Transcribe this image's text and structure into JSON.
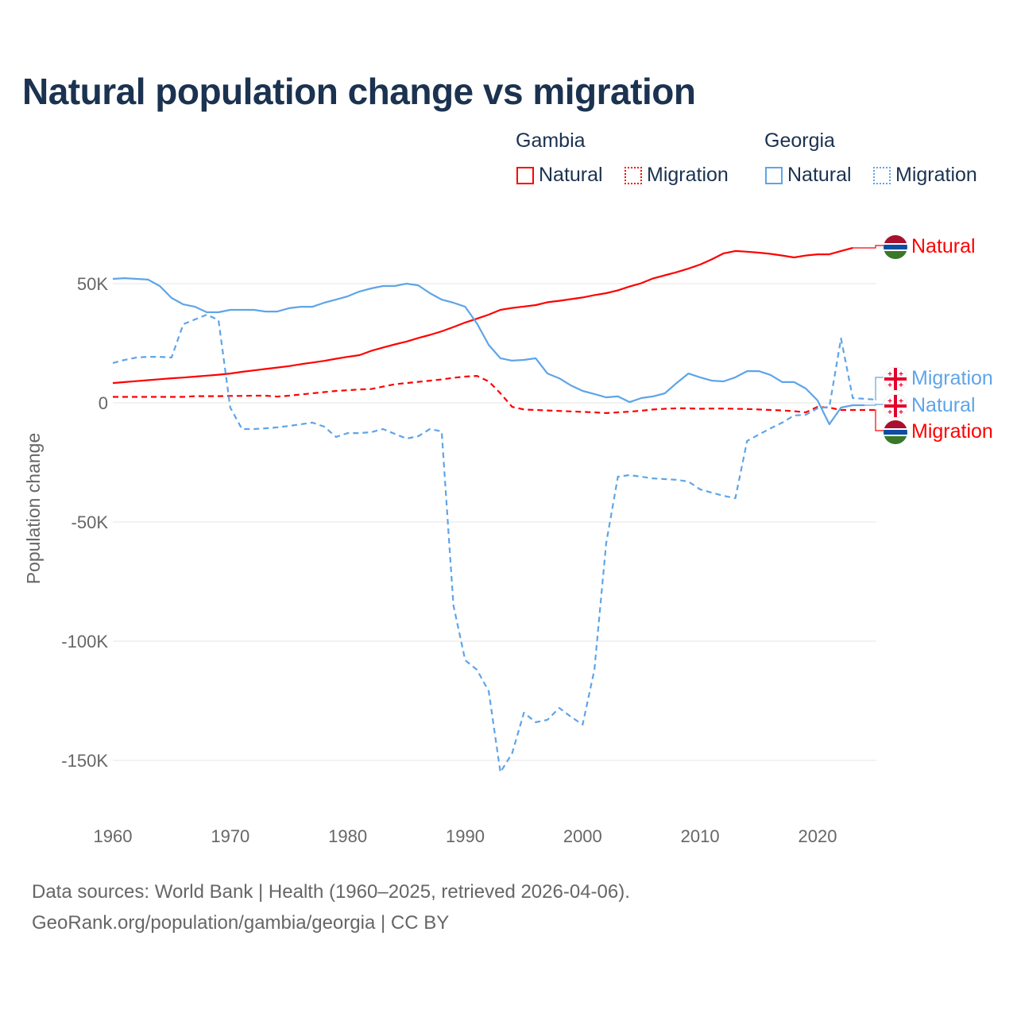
{
  "chart_data": {
    "type": "line",
    "title": "Natural population change vs migration",
    "xlabel": "",
    "ylabel": "Population change",
    "xlim": [
      1960,
      2025
    ],
    "ylim": [
      -165000,
      75000
    ],
    "x_ticks": [
      "1960",
      "1970",
      "1980",
      "1990",
      "2000",
      "2010",
      "2020"
    ],
    "y_ticks": [
      {
        "v": 50000,
        "label": "50K"
      },
      {
        "v": 0,
        "label": "0"
      },
      {
        "v": -50000,
        "label": "-50K"
      },
      {
        "v": -100000,
        "label": "-100K"
      },
      {
        "v": -150000,
        "label": "-150K"
      }
    ],
    "grid": true,
    "legend": {
      "placement": "top-right",
      "groups": [
        {
          "name": "Gambia",
          "items": [
            "Natural",
            "Migration"
          ]
        },
        {
          "name": "Georgia",
          "items": [
            "Natural",
            "Migration"
          ]
        }
      ]
    },
    "series": [
      {
        "name": "Gambia Natural",
        "country": "Gambia",
        "kind": "Natural",
        "color": "#ff0000",
        "dashed": false,
        "start": 1960,
        "end_label": "Natural",
        "values": [
          8.3,
          8.7,
          9.1,
          9.5,
          9.9,
          10.3,
          10.6,
          11,
          11.4,
          11.8,
          12.3,
          13,
          13.6,
          14.2,
          14.8,
          15.4,
          16.2,
          16.9,
          17.6,
          18.5,
          19.3,
          20,
          21.8,
          23.2,
          24.5,
          25.7,
          27.2,
          28.5,
          30,
          31.8,
          33.7,
          35.3,
          37,
          39,
          39.8,
          40.4,
          41,
          42.2,
          42.8,
          43.5,
          44.2,
          45.2,
          46,
          47.2,
          48.8,
          50.2,
          52.2,
          53.5,
          54.8,
          56.3,
          58,
          60.2,
          62.7,
          63.7,
          63.4,
          63,
          62.5,
          61.8,
          61,
          61.8,
          62.3,
          62.3,
          63.7,
          65
        ]
      },
      {
        "name": "Gambia Migration",
        "country": "Gambia",
        "kind": "Migration",
        "color": "#ff0000",
        "dashed": true,
        "start": 1960,
        "end_label": "Migration",
        "values": [
          2.5,
          2.5,
          2.5,
          2.5,
          2.5,
          2.5,
          2.5,
          2.8,
          2.8,
          2.8,
          2.9,
          2.9,
          3,
          3,
          2.6,
          3,
          3.5,
          4,
          4.5,
          5,
          5.3,
          5.6,
          5.8,
          6.8,
          7.8,
          8.3,
          8.8,
          9.3,
          9.8,
          10.5,
          11,
          11.3,
          9,
          4,
          -1.7,
          -2.8,
          -3,
          -3.2,
          -3.4,
          -3.6,
          -3.8,
          -4,
          -4.3,
          -4,
          -3.7,
          -3.3,
          -2.8,
          -2.5,
          -2.3,
          -2.3,
          -2.5,
          -2.4,
          -2.4,
          -2.5,
          -2.6,
          -2.8,
          -3,
          -3.2,
          -3.5,
          -4,
          -1.7,
          -2,
          -3,
          -3,
          -3,
          -3
        ]
      },
      {
        "name": "Georgia Natural",
        "country": "Georgia",
        "kind": "Natural",
        "color": "#5ea5e8",
        "dashed": false,
        "start": 1960,
        "end_label": "Natural",
        "values": [
          52,
          52.3,
          52,
          51.7,
          49,
          44,
          41.3,
          40.3,
          38,
          38,
          39,
          39,
          39,
          38.3,
          38.3,
          39.7,
          40.3,
          40.3,
          42,
          43.3,
          44.7,
          46.7,
          48,
          49,
          49,
          50,
          49.3,
          46,
          43.3,
          42,
          40.3,
          33.3,
          24.3,
          18.7,
          17.7,
          18,
          18.7,
          12.3,
          10.3,
          7.3,
          5,
          3.7,
          2.3,
          2.7,
          0.3,
          2,
          2.7,
          4,
          8.3,
          12.3,
          10.7,
          9.3,
          9,
          10.7,
          13.3,
          13.3,
          11.7,
          8.7,
          8.7,
          6,
          1,
          -9,
          -2,
          -1,
          -1
        ]
      },
      {
        "name": "Georgia Migration",
        "country": "Georgia",
        "kind": "Migration",
        "color": "#5ea5e8",
        "dashed": true,
        "start": 1960,
        "end_label": "Migration",
        "values": [
          16.7,
          18,
          19,
          19.3,
          19.3,
          19,
          33,
          35,
          37,
          34.7,
          -2,
          -11,
          -11,
          -10.7,
          -10.3,
          -9.7,
          -9,
          -8.3,
          -10,
          -14.3,
          -12.7,
          -12.7,
          -12.3,
          -11,
          -13,
          -15,
          -14,
          -11,
          -12,
          -85,
          -108,
          -112,
          -121,
          -155,
          -147,
          -130,
          -134,
          -133,
          -128,
          -131.7,
          -135,
          -112,
          -59,
          -31,
          -30.3,
          -31,
          -31.7,
          -32,
          -32.3,
          -33,
          -36.3,
          -37.7,
          -39,
          -40,
          -16,
          -13.3,
          -10.7,
          -8.3,
          -5.3,
          -5,
          -2.3,
          -1.7,
          27,
          2,
          1.7,
          1.3
        ]
      }
    ],
    "value_unit": "thousands"
  },
  "legend_labels": {
    "gambia": "Gambia",
    "georgia": "Georgia",
    "natural": "Natural",
    "migration": "Migration"
  },
  "source_line1": "Data sources: World Bank | Health (1960–2025, retrieved 2026-04-06).",
  "source_line2": "GeoRank.org/population/gambia/georgia | CC BY"
}
